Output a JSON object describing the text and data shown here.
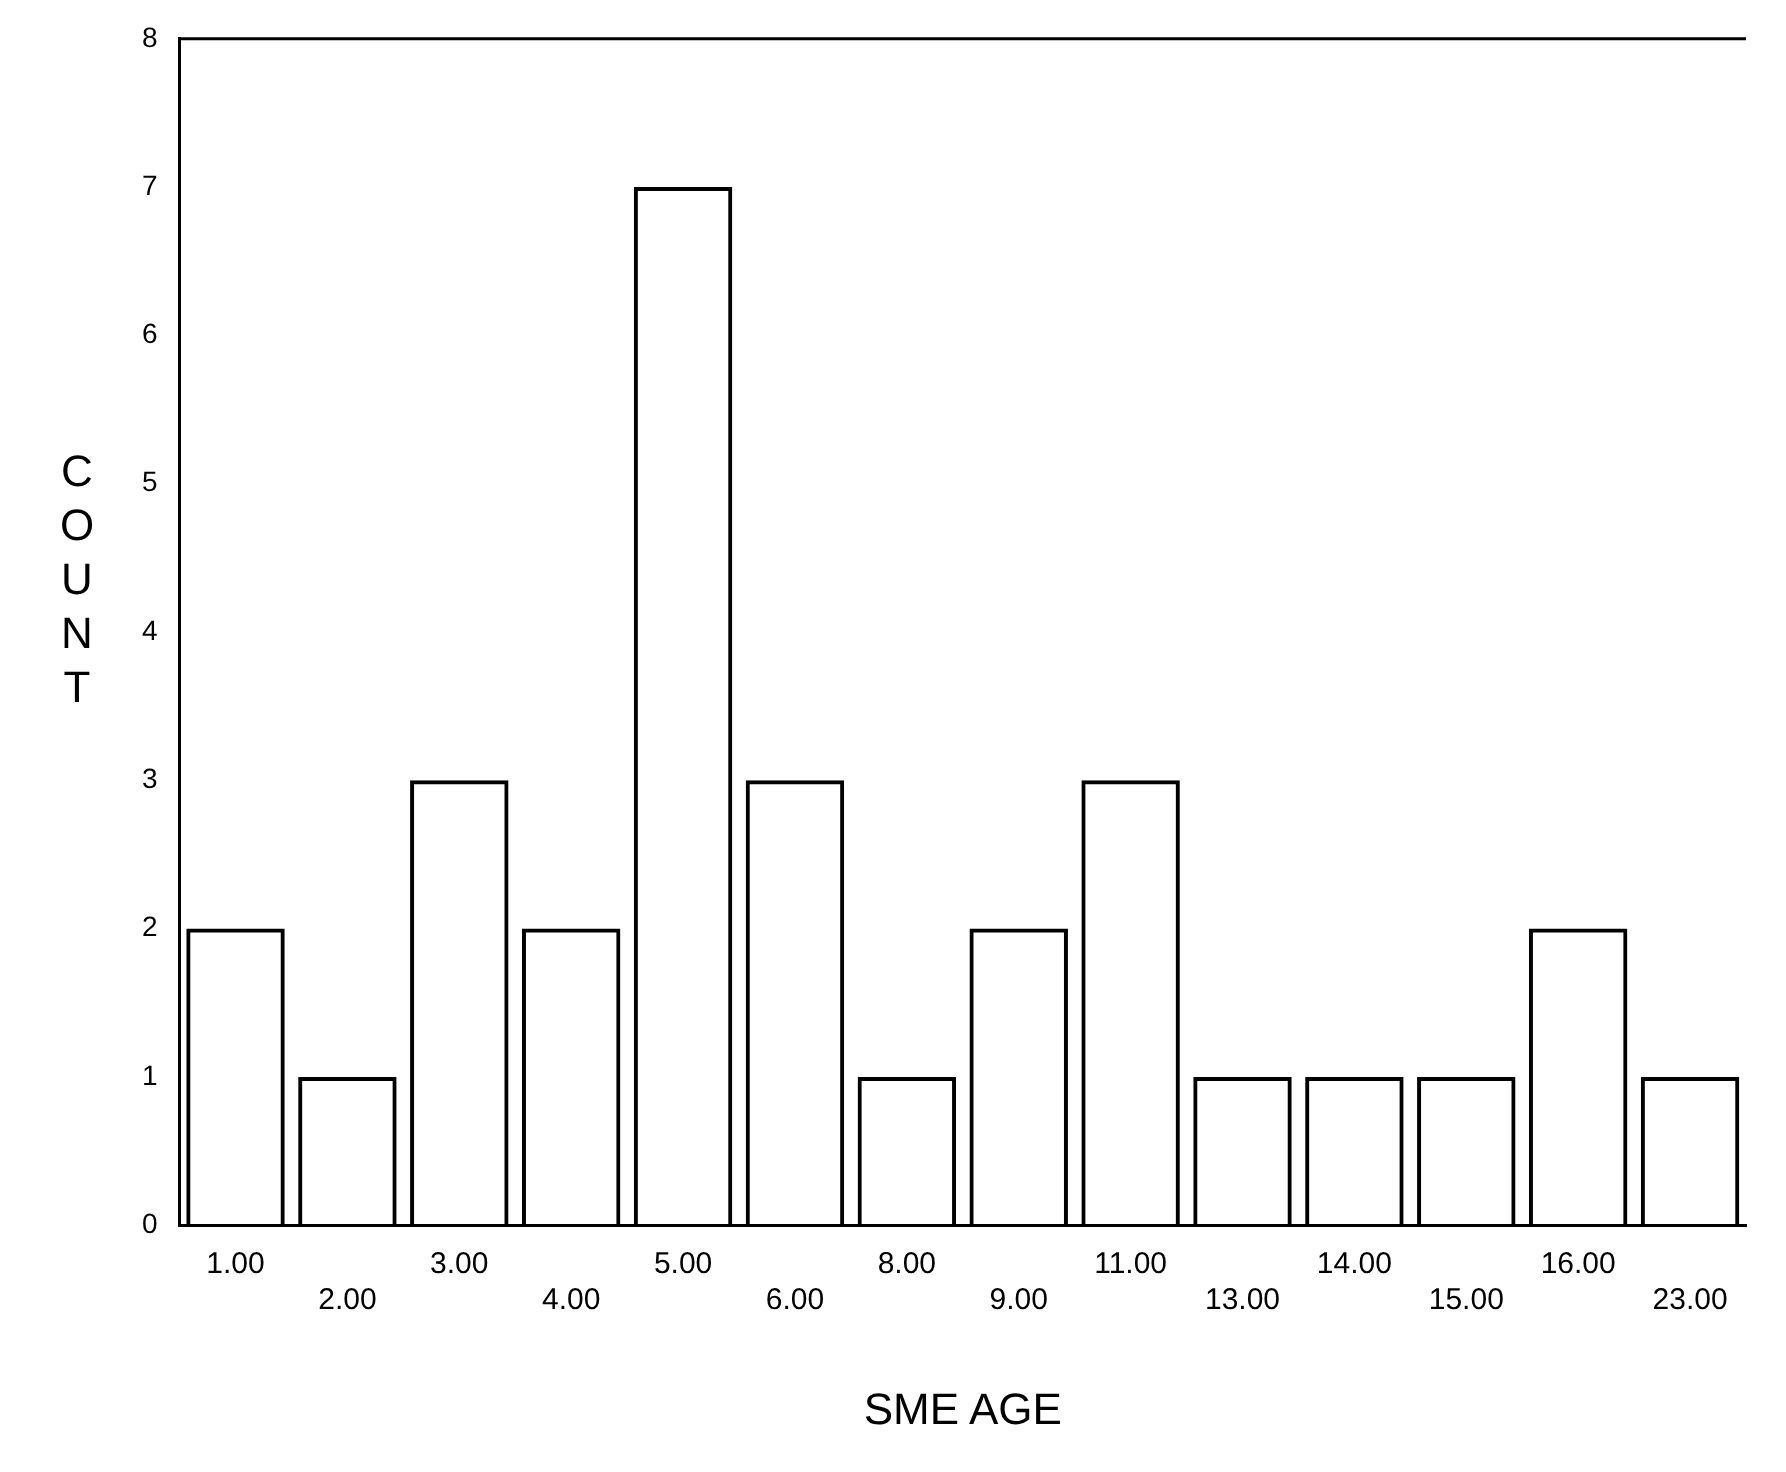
{
  "chart_data": {
    "type": "bar",
    "xlabel": "SME AGE",
    "ylabel": "COUNT",
    "categories": [
      "1.00",
      "2.00",
      "3.00",
      "4.00",
      "5.00",
      "6.00",
      "8.00",
      "9.00",
      "11.00",
      "13.00",
      "14.00",
      "15.00",
      "16.00",
      "23.00"
    ],
    "values": [
      2,
      1,
      3,
      2,
      7,
      3,
      1,
      2,
      3,
      1,
      1,
      1,
      2,
      1
    ],
    "color": "#000000",
    "ylim": [
      0,
      8
    ],
    "yticks": [
      0,
      1,
      2,
      3,
      4,
      5,
      6,
      7,
      8
    ],
    "grid": false,
    "legend": false
  }
}
